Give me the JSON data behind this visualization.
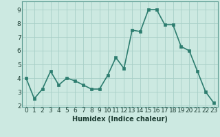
{
  "x": [
    0,
    1,
    2,
    3,
    4,
    5,
    6,
    7,
    8,
    9,
    10,
    11,
    12,
    13,
    14,
    15,
    16,
    17,
    18,
    19,
    20,
    21,
    22,
    23
  ],
  "y": [
    4.0,
    2.5,
    3.2,
    4.5,
    3.5,
    4.0,
    3.8,
    3.5,
    3.2,
    3.2,
    4.2,
    5.5,
    4.7,
    7.5,
    7.4,
    9.0,
    9.0,
    7.9,
    7.9,
    6.3,
    6.0,
    4.5,
    3.0,
    2.2
  ],
  "xlabel": "Humidex (Indice chaleur)",
  "line_color": "#2d7d6f",
  "marker_color": "#2d7d6f",
  "bg_color": "#cce9e1",
  "grid_color": "#a8cfc7",
  "xlim": [
    -0.5,
    23.5
  ],
  "ylim": [
    1.9,
    9.6
  ],
  "yticks": [
    2,
    3,
    4,
    5,
    6,
    7,
    8,
    9
  ],
  "xticks": [
    0,
    1,
    2,
    3,
    4,
    5,
    6,
    7,
    8,
    9,
    10,
    11,
    12,
    13,
    14,
    15,
    16,
    17,
    18,
    19,
    20,
    21,
    22,
    23
  ],
  "xlabel_fontsize": 7,
  "tick_fontsize": 6.5,
  "line_width": 1.2,
  "marker_size": 2.5
}
